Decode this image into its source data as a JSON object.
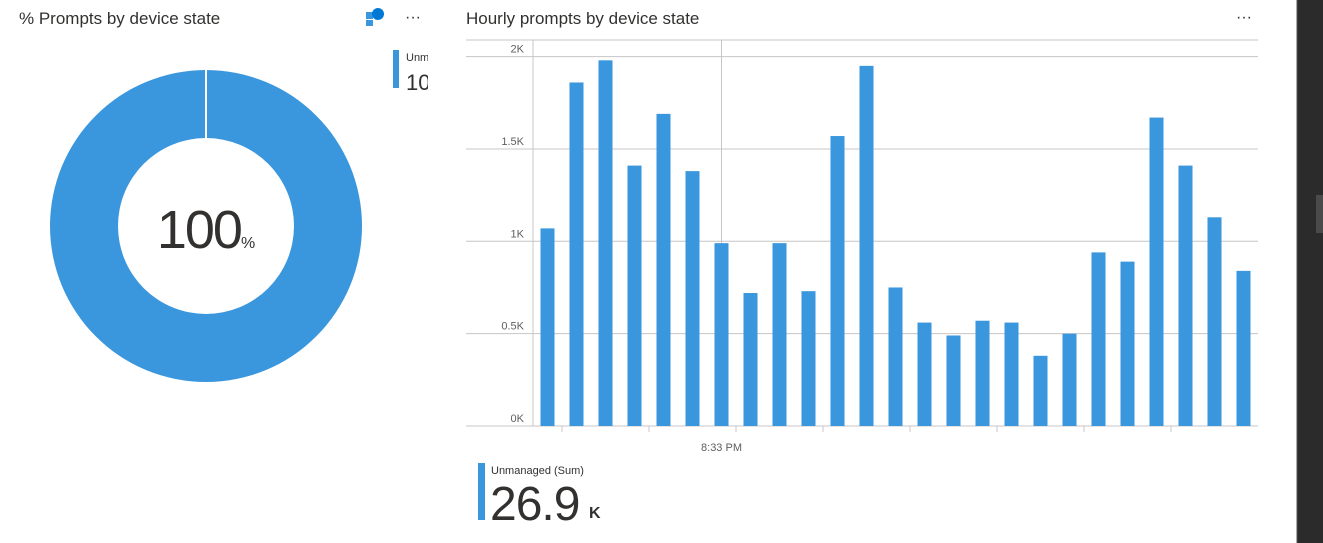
{
  "chart_data": [
    {
      "type": "donut",
      "title": "% Prompts by device state",
      "categories": [
        "Unmanaged"
      ],
      "values": [
        100
      ],
      "unit": "%",
      "color": "#3a96dd"
    },
    {
      "type": "bar",
      "title": "Hourly prompts by device state",
      "categories": [
        null,
        null,
        null,
        null,
        null,
        null,
        "8:33 PM",
        null,
        null,
        null,
        null,
        null,
        null,
        null,
        null,
        null,
        null,
        null,
        null,
        null,
        null,
        null,
        null,
        null,
        null
      ],
      "series": [
        {
          "name": "Unmanaged (Sum)",
          "color": "#3a96dd",
          "values": [
            1070,
            1860,
            1980,
            1410,
            1690,
            1380,
            990,
            720,
            990,
            730,
            1570,
            1950,
            750,
            560,
            490,
            570,
            560,
            380,
            500,
            940,
            890,
            1670,
            1410,
            1130,
            840
          ]
        }
      ],
      "ylim": [
        0,
        2090
      ],
      "yticks": [
        {
          "value": 0,
          "label": "0K"
        },
        {
          "value": 500,
          "label": "0.5K"
        },
        {
          "value": 1000,
          "label": "1K"
        },
        {
          "value": 1500,
          "label": "1.5K"
        },
        {
          "value": 2000,
          "label": "2K"
        }
      ],
      "grid": true,
      "total": 26.9,
      "total_unit": "K"
    }
  ]
}
